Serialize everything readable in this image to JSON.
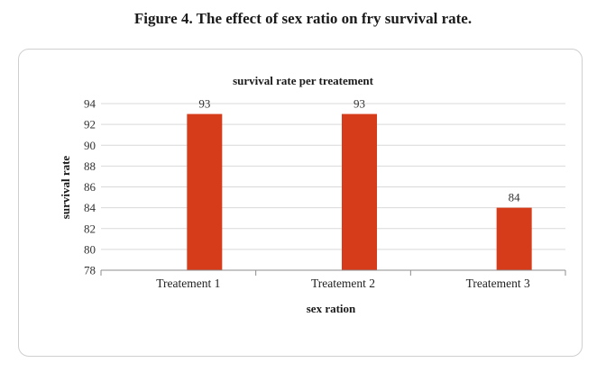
{
  "figure_caption": "Figure 4. The effect of sex ratio on fry survival rate.",
  "colors": {
    "bar": "#d63b1a",
    "grid": "#d9d9d9",
    "axis": "#8c8c8c"
  },
  "chart_data": {
    "type": "bar",
    "title": "survival rate per treatement",
    "xlabel": "sex ration",
    "ylabel": "survival rate",
    "categories": [
      "Treatement 1",
      "Treatement 2",
      "Treatement 3"
    ],
    "values": [
      93,
      93,
      84
    ],
    "ylim": [
      78,
      94
    ],
    "yticks": [
      78,
      80,
      82,
      84,
      86,
      88,
      90,
      92,
      94
    ],
    "grid": true,
    "legend": "none",
    "data_labels": true
  }
}
